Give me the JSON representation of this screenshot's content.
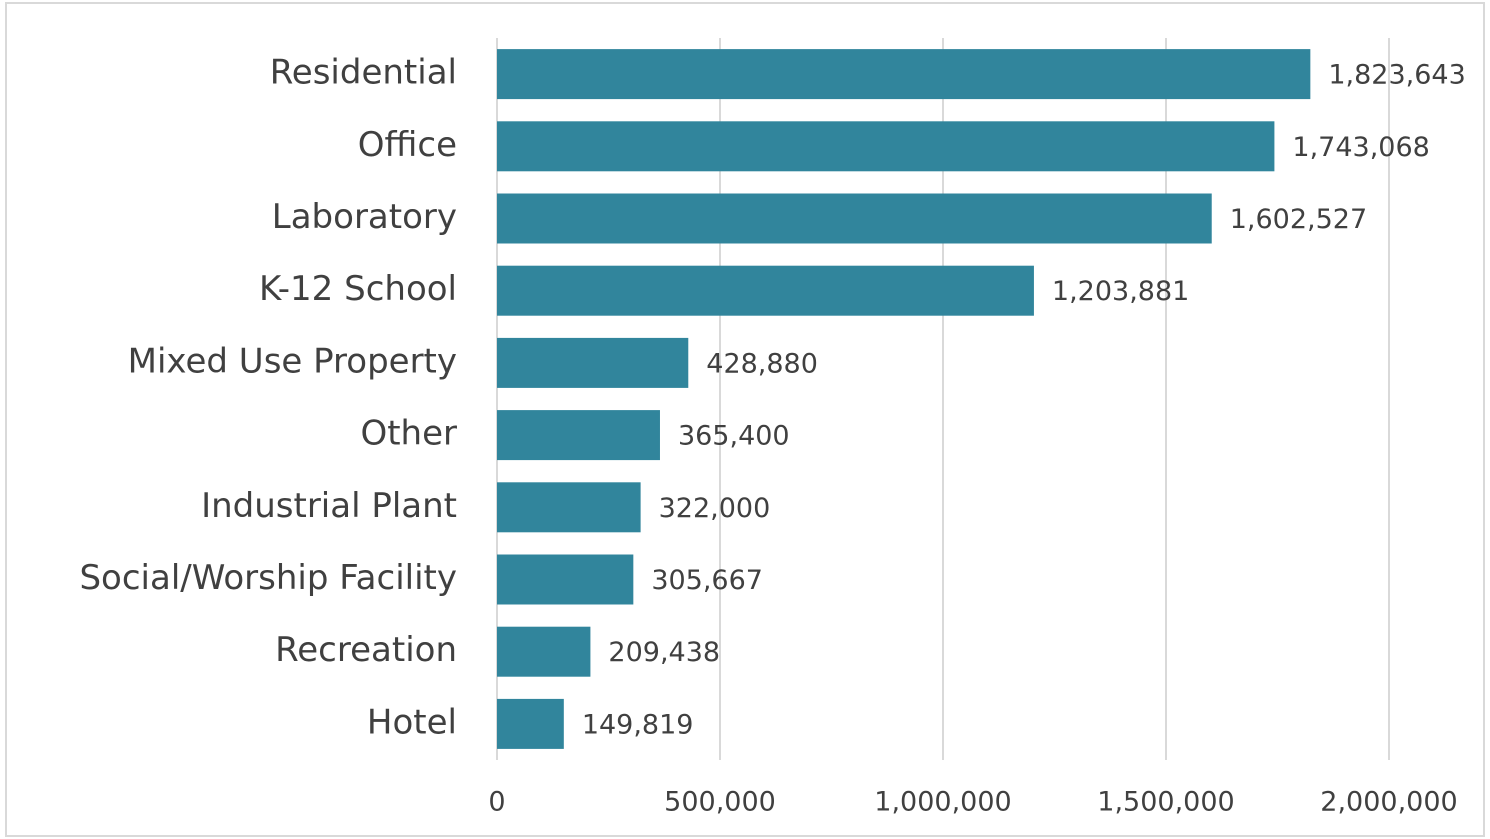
{
  "chart_data": {
    "type": "bar",
    "orientation": "horizontal",
    "categories": [
      "Residential",
      "Office",
      "Laboratory",
      "K-12 School",
      "Mixed Use Property",
      "Other",
      "Industrial Plant",
      "Social/Worship Facility",
      "Recreation",
      "Hotel"
    ],
    "values": [
      1823643,
      1743068,
      1602527,
      1203881,
      428880,
      365400,
      322000,
      305667,
      209438,
      149819
    ],
    "value_labels": [
      "1,823,643",
      "1,743,068",
      "1,602,527",
      "1,203,881",
      "428,880",
      "365,400",
      "322,000",
      "305,667",
      "209,438",
      "149,819"
    ],
    "color": "#31859c",
    "xlim": [
      0,
      2000000
    ],
    "xticks": [
      0,
      {
        "value": 500000,
        "label": "500,000"
      },
      {
        "value": 1000000,
        "label": "1,000,000"
      },
      {
        "value": 1500000,
        "label": "1,500,000"
      },
      {
        "value": 2000000,
        "label": "2,000,000"
      }
    ],
    "grid": true
  }
}
